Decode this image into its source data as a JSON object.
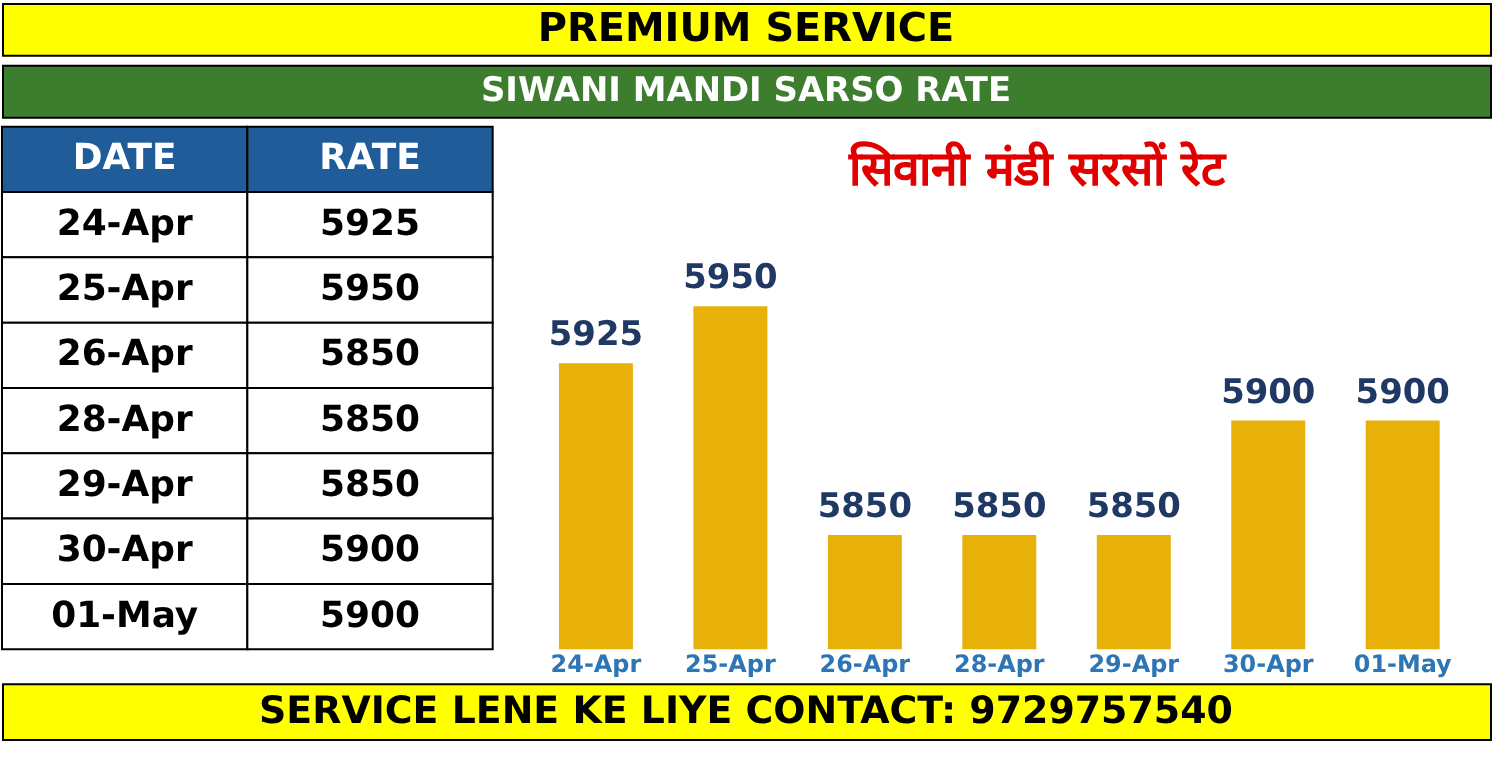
{
  "chart_data": [
    {
      "type": "other",
      "title": "PREMIUM SERVICE",
      "subtitle": "SIWANI MANDI SARSO RATE",
      "annotations": [
        "DATE",
        "RATE",
        "SERVICE LENE KE LIYE CONTACT: 9729757540"
      ],
      "categories": [
        "24-Apr",
        "25-Apr",
        "26-Apr",
        "28-Apr",
        "29-Apr",
        "30-Apr",
        "01-May"
      ],
      "values": [
        5925,
        5950,
        5850,
        5850,
        5850,
        5900,
        5900
      ],
      "data_labels": true
    },
    {
      "type": "bar",
      "title": "सिवानी मंडी सरसों रेट",
      "categories": [
        "24-Apr",
        "25-Apr",
        "26-Apr",
        "28-Apr",
        "29-Apr",
        "30-Apr",
        "01-May"
      ],
      "values": [
        5925,
        5950,
        5850,
        5850,
        5850,
        5900,
        5900
      ],
      "color": "#e8b10a",
      "ylim": [
        5800,
        5950
      ],
      "data_labels": true,
      "grid": false
    }
  ]
}
